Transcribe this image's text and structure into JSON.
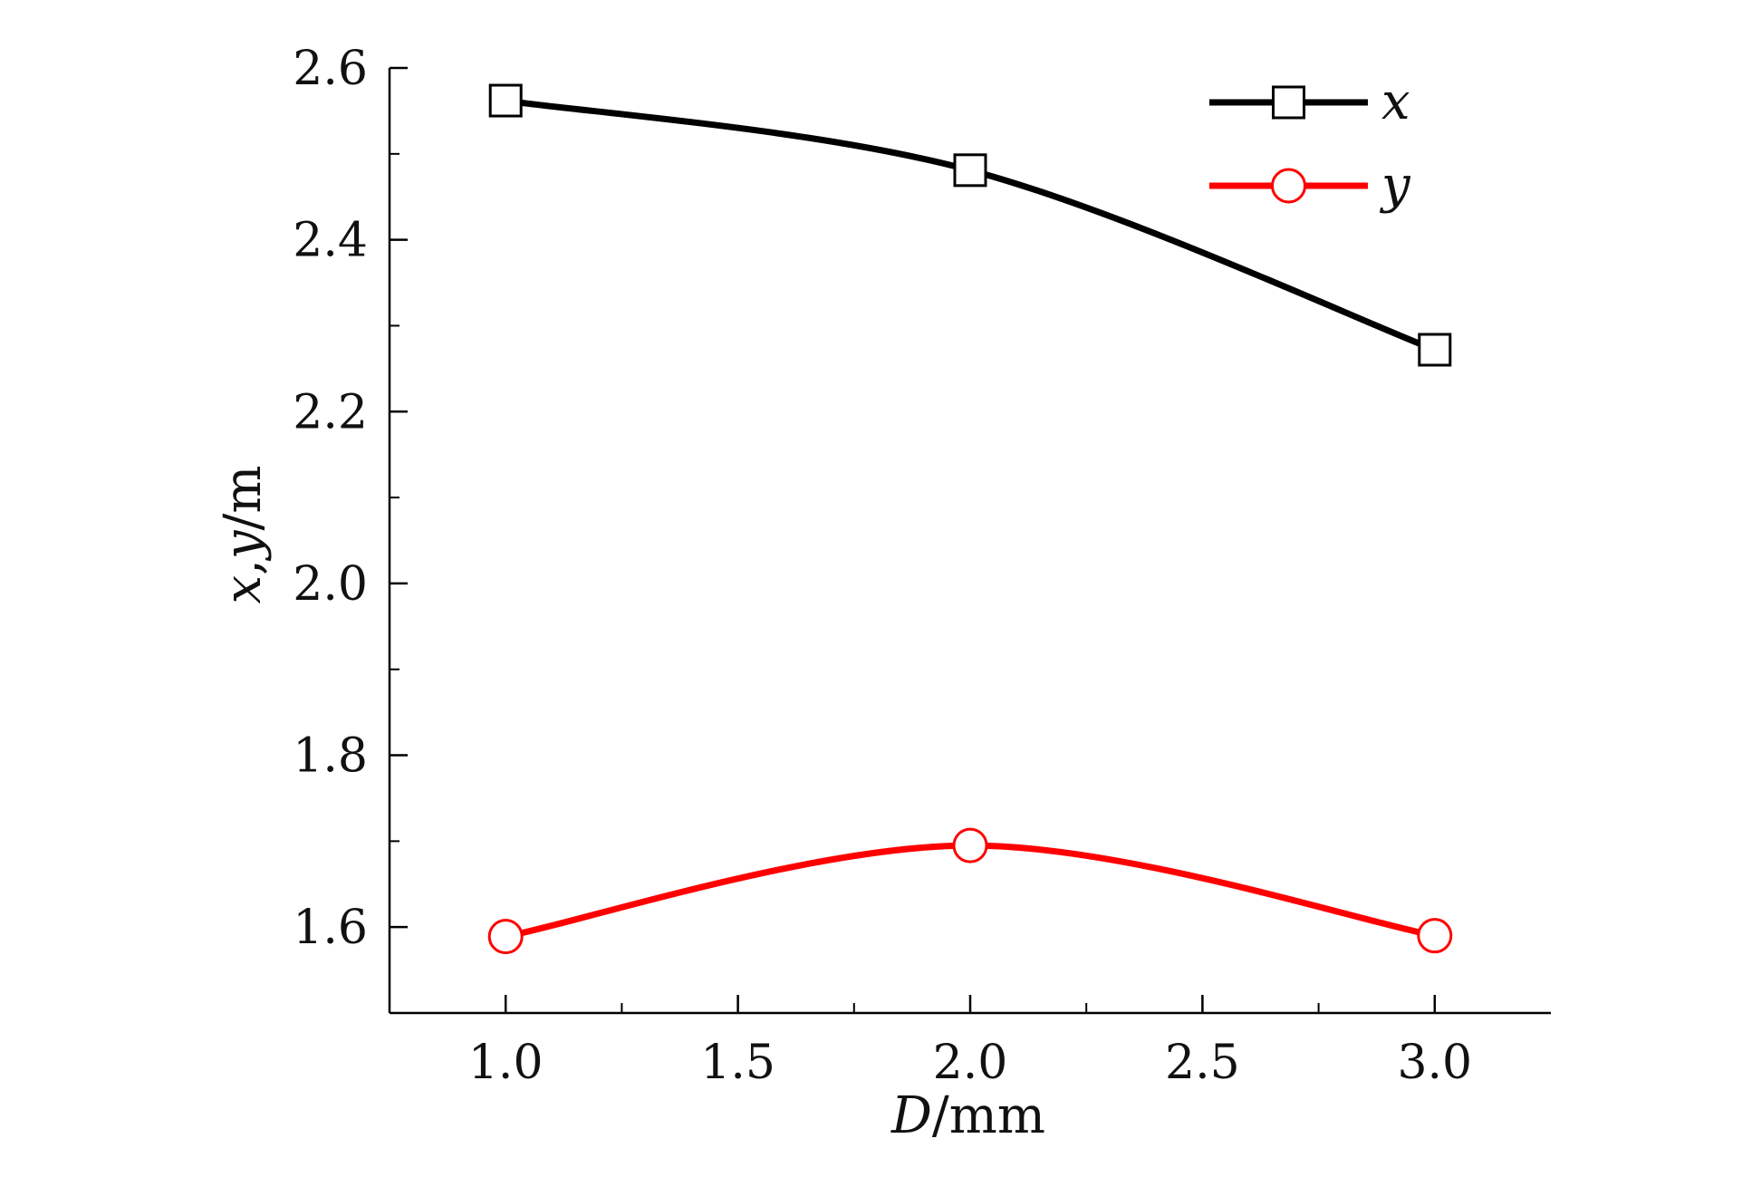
{
  "chart_data": {
    "type": "line",
    "title": "",
    "xlabel": {
      "symbol": "D",
      "unit": "/mm"
    },
    "ylabel": {
      "symbol_x": "x",
      "separator": ",",
      "symbol_y": "y",
      "unit": "/m"
    },
    "xlim": [
      0.75,
      3.25
    ],
    "ylim": [
      1.5,
      2.6
    ],
    "xticks": [
      1.0,
      1.5,
      2.0,
      2.5,
      3.0
    ],
    "xtick_labels": [
      "1.0",
      "1.5",
      "2.0",
      "2.5",
      "3.0"
    ],
    "yticks": [
      1.6,
      1.8,
      2.0,
      2.2,
      2.4,
      2.6
    ],
    "ytick_labels": [
      "1.6",
      "1.8",
      "2.0",
      "2.2",
      "2.4",
      "2.6"
    ],
    "x": [
      1.0,
      2.0,
      3.0
    ],
    "series": [
      {
        "name": "x",
        "values": [
          2.562,
          2.481,
          2.272
        ],
        "color": "#000000",
        "marker": "square"
      },
      {
        "name": "y",
        "values": [
          1.589,
          1.695,
          1.59
        ],
        "color": "#ff0000",
        "marker": "circle"
      }
    ],
    "legend_position": "top-right",
    "grid": false
  }
}
